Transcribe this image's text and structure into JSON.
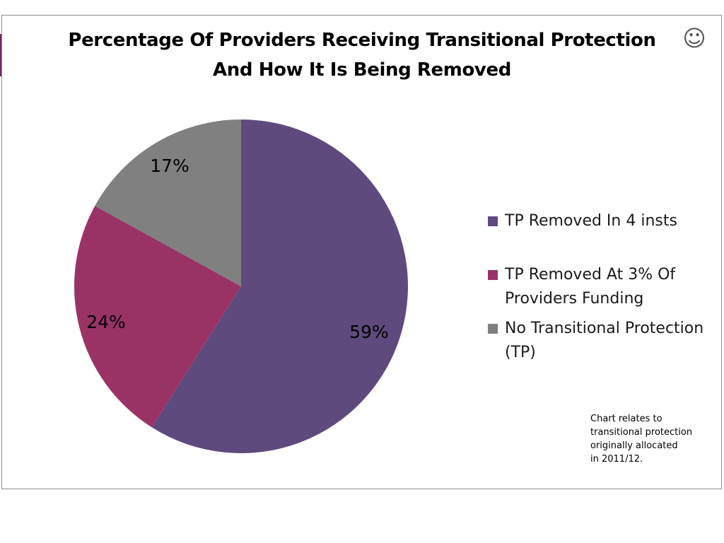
{
  "chart_data": {
    "type": "pie",
    "title": "Percentage Of Providers Receiving Transitional Protection And How It Is Being Removed",
    "title_lines": [
      "Percentage Of Providers Receiving Transitional Protection",
      "And How It Is Being Removed"
    ],
    "slices": [
      {
        "label": "TP Removed In 4 insts",
        "value": 59,
        "display": "59%",
        "color": "#5f4a7d"
      },
      {
        "label": "TP Removed At 3% Of Providers Funding",
        "value": 24,
        "display": "24%",
        "color": "#993366"
      },
      {
        "label": "No Transitional Protection (TP)",
        "value": 17,
        "display": "17%",
        "color": "#808080"
      }
    ],
    "legend": {
      "placement": "right",
      "items": [
        {
          "lines": [
            "TP Removed In 4 insts"
          ],
          "color": "#5f4a7d"
        },
        {
          "lines": [
            "TP Removed At 3% Of",
            "Providers Funding"
          ],
          "color": "#993366"
        },
        {
          "lines": [
            "No Transitional Protection",
            "(TP)"
          ],
          "color": "#808080"
        }
      ]
    }
  },
  "note": {
    "lines": [
      "Chart relates to",
      "transitional protection",
      "originally allocated",
      "in 2011/12."
    ]
  },
  "decoration": {
    "smiley": "☺",
    "smiley_icon": "smiley-face-icon"
  }
}
